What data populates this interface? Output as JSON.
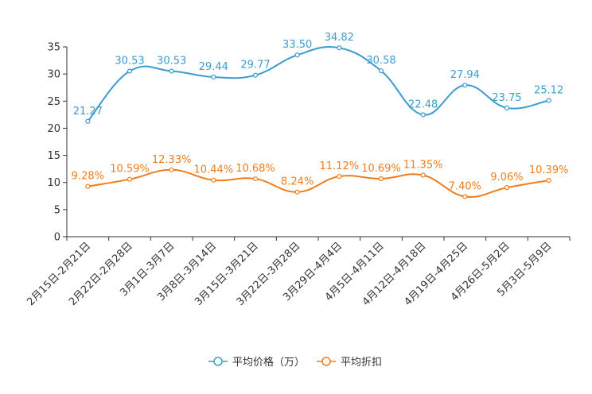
{
  "chart_data": {
    "type": "line",
    "title": "",
    "xlabel": "",
    "ylabel": "",
    "ylim": [
      0,
      35
    ],
    "yticks": [
      0,
      5,
      10,
      15,
      20,
      25,
      30,
      35
    ],
    "grid": false,
    "legend": "bottom-center",
    "categories": [
      "2月15日-2月21日",
      "2月22日-2月28日",
      "3月1日-3月7日",
      "3月8日-3月14日",
      "3月15日-3月21日",
      "3月22日-3月28日",
      "3月29日-4月4日",
      "4月5日-4月11日",
      "4月12日-4月18日",
      "4月19日-4月25日",
      "4月26日-5月2日",
      "5月3日-5月9日"
    ],
    "series": [
      {
        "name": "平均价格（万）",
        "color": "#3a9ccf",
        "values": [
          21.27,
          30.53,
          30.53,
          29.44,
          29.77,
          33.5,
          34.82,
          30.58,
          22.48,
          27.94,
          23.75,
          25.12
        ],
        "labels": [
          "21.27",
          "30.53",
          "30.53",
          "29.44",
          "29.77",
          "33.50",
          "34.82",
          "30.58",
          "22.48",
          "27.94",
          "23.75",
          "25.12"
        ]
      },
      {
        "name": "平均折扣",
        "color": "#f07d1b",
        "values": [
          9.28,
          10.59,
          12.33,
          10.44,
          10.68,
          8.24,
          11.12,
          10.69,
          11.35,
          7.4,
          9.06,
          10.39
        ],
        "labels": [
          "9.28%",
          "10.59%",
          "12.33%",
          "10.44%",
          "10.68%",
          "8.24%",
          "11.12%",
          "10.69%",
          "11.35%",
          "7.40%",
          "9.06%",
          "10.39%"
        ]
      }
    ]
  }
}
